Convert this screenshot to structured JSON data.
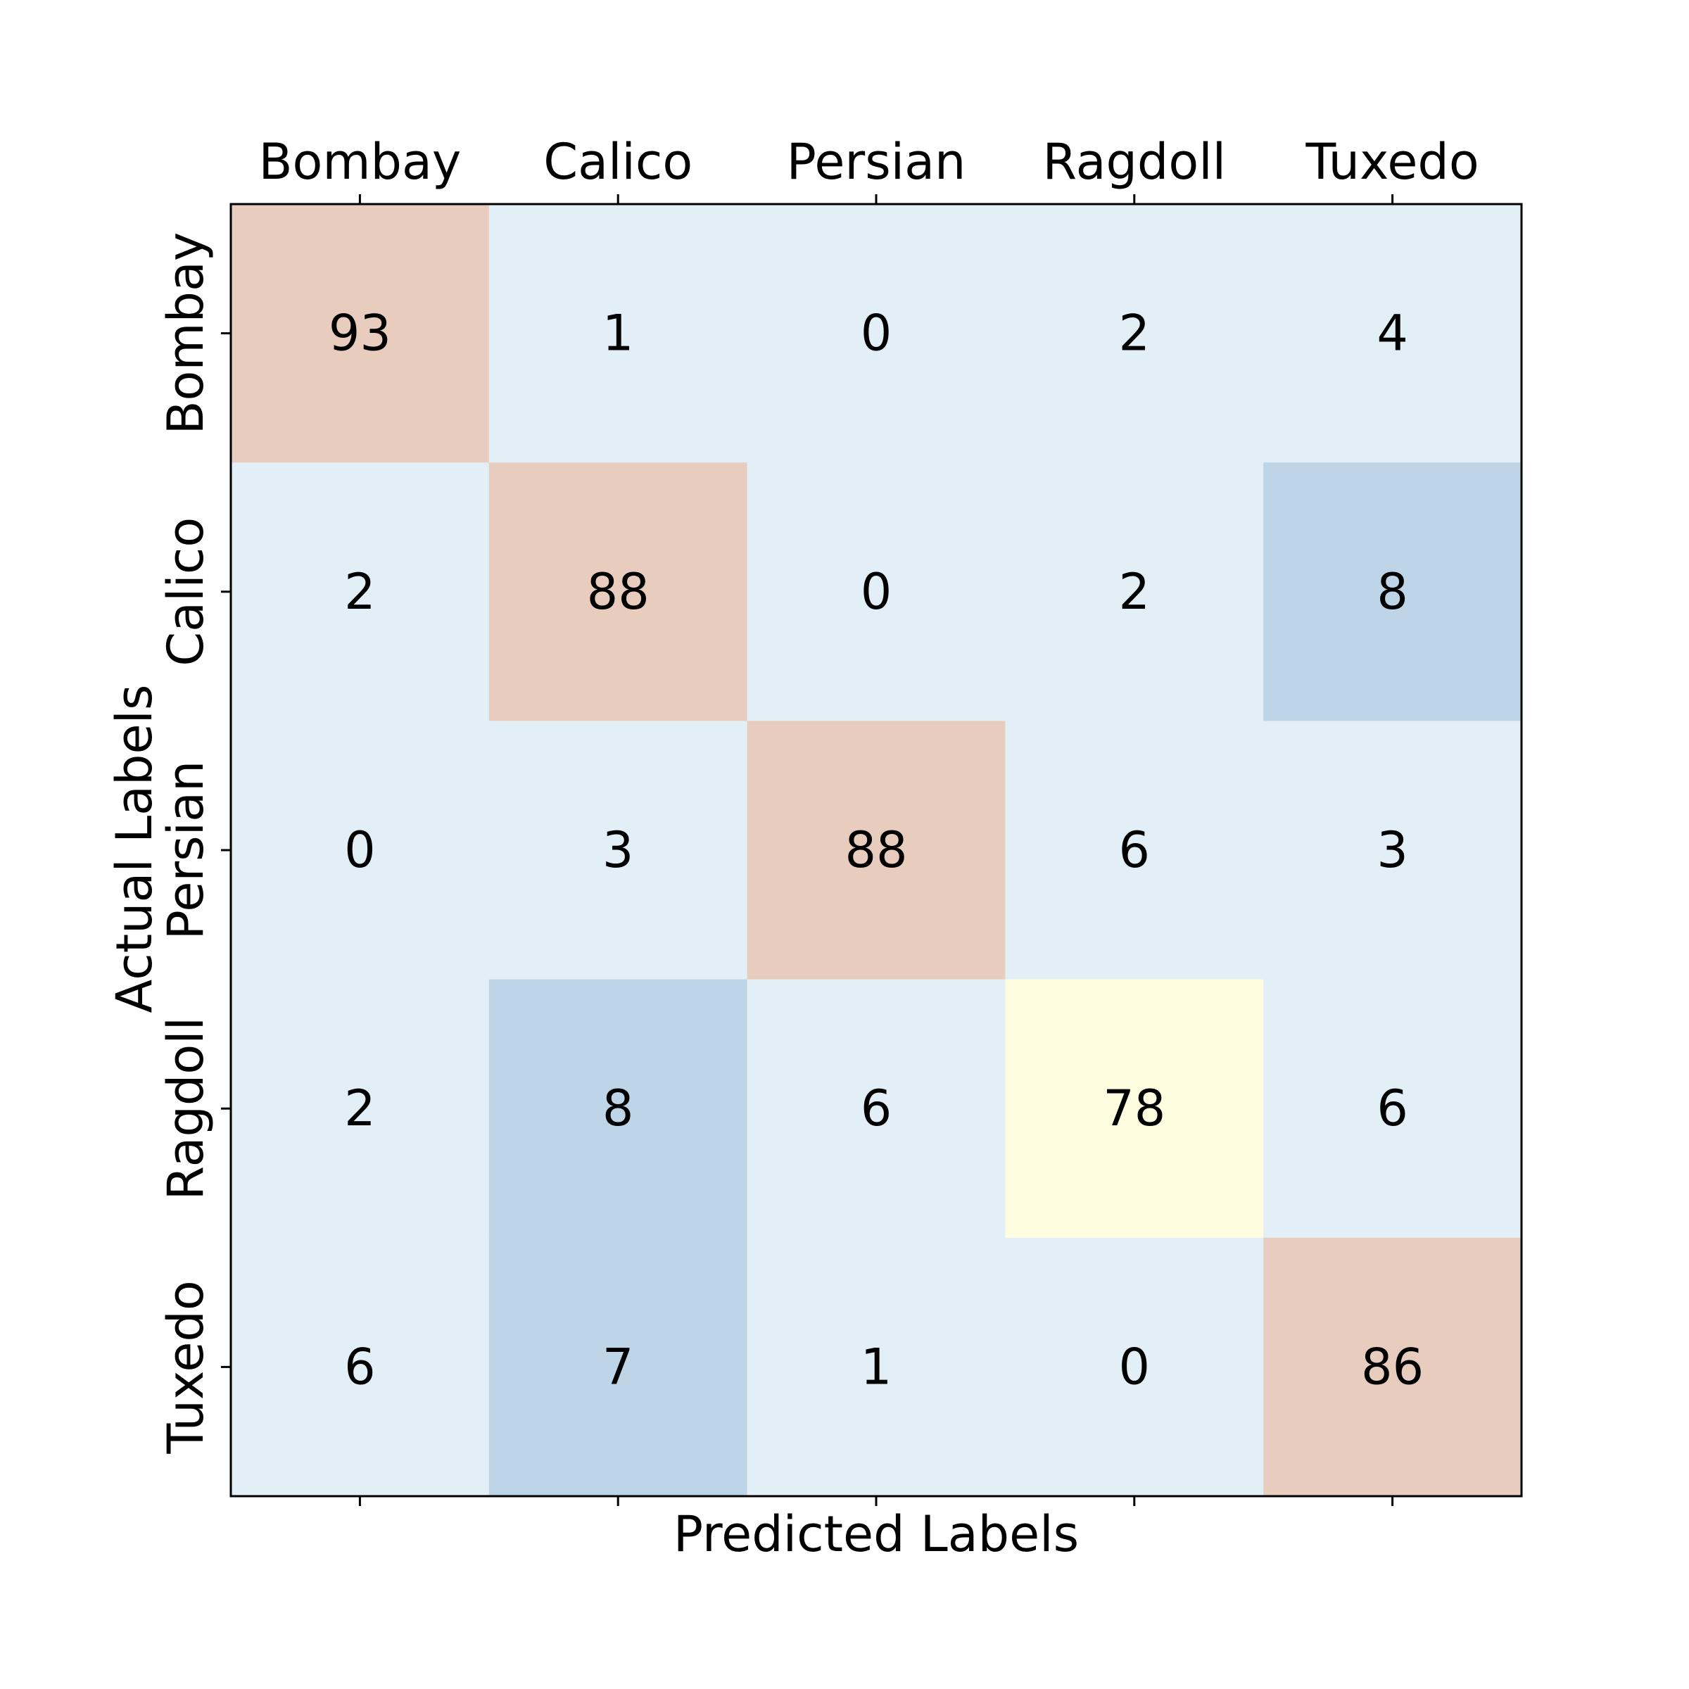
{
  "chart_data": {
    "type": "heatmap",
    "title": "",
    "xlabel": "Predicted Labels",
    "ylabel": "Actual Labels",
    "x_categories": [
      "Bombay",
      "Calico",
      "Persian",
      "Ragdoll",
      "Tuxedo"
    ],
    "y_categories": [
      "Bombay",
      "Calico",
      "Persian",
      "Ragdoll",
      "Tuxedo"
    ],
    "x_tick_position": "top",
    "values": [
      [
        93,
        1,
        0,
        2,
        4
      ],
      [
        2,
        88,
        0,
        2,
        8
      ],
      [
        0,
        3,
        88,
        6,
        3
      ],
      [
        2,
        8,
        6,
        78,
        6
      ],
      [
        6,
        7,
        1,
        0,
        86
      ]
    ],
    "colors": {
      "low": "#e3eff6",
      "mid_low": "#bdd5e7",
      "mid_high": "#fffddf",
      "high": "#e8cdbf",
      "frame": "#000000"
    },
    "color_bins": [
      {
        "min": 0,
        "max": 6,
        "color_key": "low"
      },
      {
        "min": 7,
        "max": 20,
        "color_key": "mid_low"
      },
      {
        "min": 21,
        "max": 80,
        "color_key": "mid_high"
      },
      {
        "min": 81,
        "max": 100,
        "color_key": "high"
      }
    ]
  }
}
